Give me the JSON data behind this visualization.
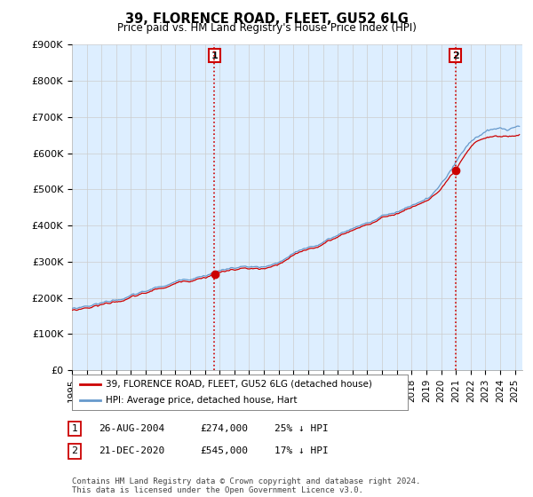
{
  "title": "39, FLORENCE ROAD, FLEET, GU52 6LG",
  "subtitle": "Price paid vs. HM Land Registry's House Price Index (HPI)",
  "ylabel_ticks": [
    "£0",
    "£100K",
    "£200K",
    "£300K",
    "£400K",
    "£500K",
    "£600K",
    "£700K",
    "£800K",
    "£900K"
  ],
  "ylim": [
    0,
    900000
  ],
  "xlim_start": 1995.0,
  "xlim_end": 2025.5,
  "hpi_color": "#6699cc",
  "hpi_fill_color": "#ddeeff",
  "price_color": "#cc0000",
  "vline_color": "#cc0000",
  "marker1_x": 2004.65,
  "marker1_label": "1",
  "marker2_x": 2020.97,
  "marker2_label": "2",
  "price_at_t1": 274000,
  "price_at_t2": 545000,
  "t1": 2004.65,
  "t2": 2020.97,
  "legend_line1": "39, FLORENCE ROAD, FLEET, GU52 6LG (detached house)",
  "legend_line2": "HPI: Average price, detached house, Hart",
  "table_rows": [
    [
      "1",
      "26-AUG-2004",
      "£274,000",
      "25% ↓ HPI"
    ],
    [
      "2",
      "21-DEC-2020",
      "£545,000",
      "17% ↓ HPI"
    ]
  ],
  "footnote": "Contains HM Land Registry data © Crown copyright and database right 2024.\nThis data is licensed under the Open Government Licence v3.0.",
  "background_color": "#ffffff",
  "grid_color": "#cccccc"
}
